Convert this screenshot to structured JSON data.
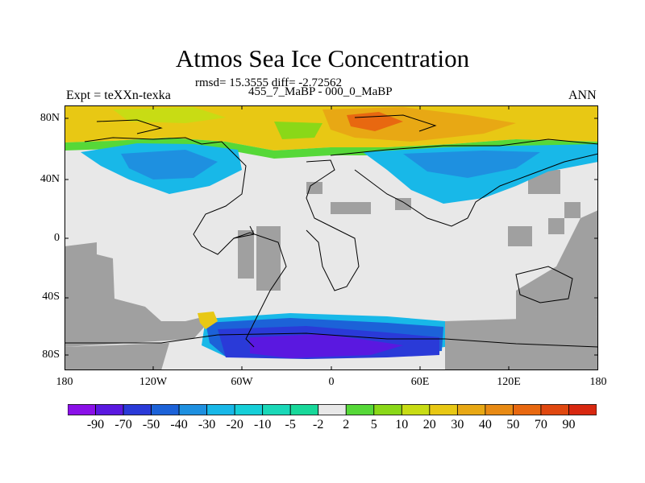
{
  "header": {
    "title": "Atmos Sea Ice Concentration",
    "stats": "rmsd= 15.3555 diff= -2.72562",
    "experiment": "Expt = teXXn-texka",
    "period": "455_7_MaBP - 000_0_MaBP",
    "season": "ANN"
  },
  "axes": {
    "lat_labels": [
      "80N",
      "40N",
      "0",
      "40S",
      "80S"
    ],
    "lon_labels": [
      "180",
      "120W",
      "60W",
      "0",
      "60E",
      "120E",
      "180"
    ]
  },
  "colorbar": {
    "labels": [
      "-90",
      "-70",
      "-50",
      "-40",
      "-30",
      "-20",
      "-10",
      "-5",
      "-2",
      "2",
      "5",
      "10",
      "20",
      "30",
      "40",
      "50",
      "70",
      "90"
    ],
    "colors": [
      "#8a10e8",
      "#5a18e0",
      "#2a3ad8",
      "#1c62d8",
      "#1e90e0",
      "#18b8e8",
      "#16cfd8",
      "#1ad8b8",
      "#18d89a",
      "#e8e8e8",
      "#56d838",
      "#8ad818",
      "#c8dc14",
      "#e8c814",
      "#e8a814",
      "#e88a14",
      "#e86810",
      "#e04810",
      "#d82810"
    ]
  },
  "map_colors": {
    "ocean": "#e8e8e8",
    "land_missing": "#a0a0a0"
  }
}
